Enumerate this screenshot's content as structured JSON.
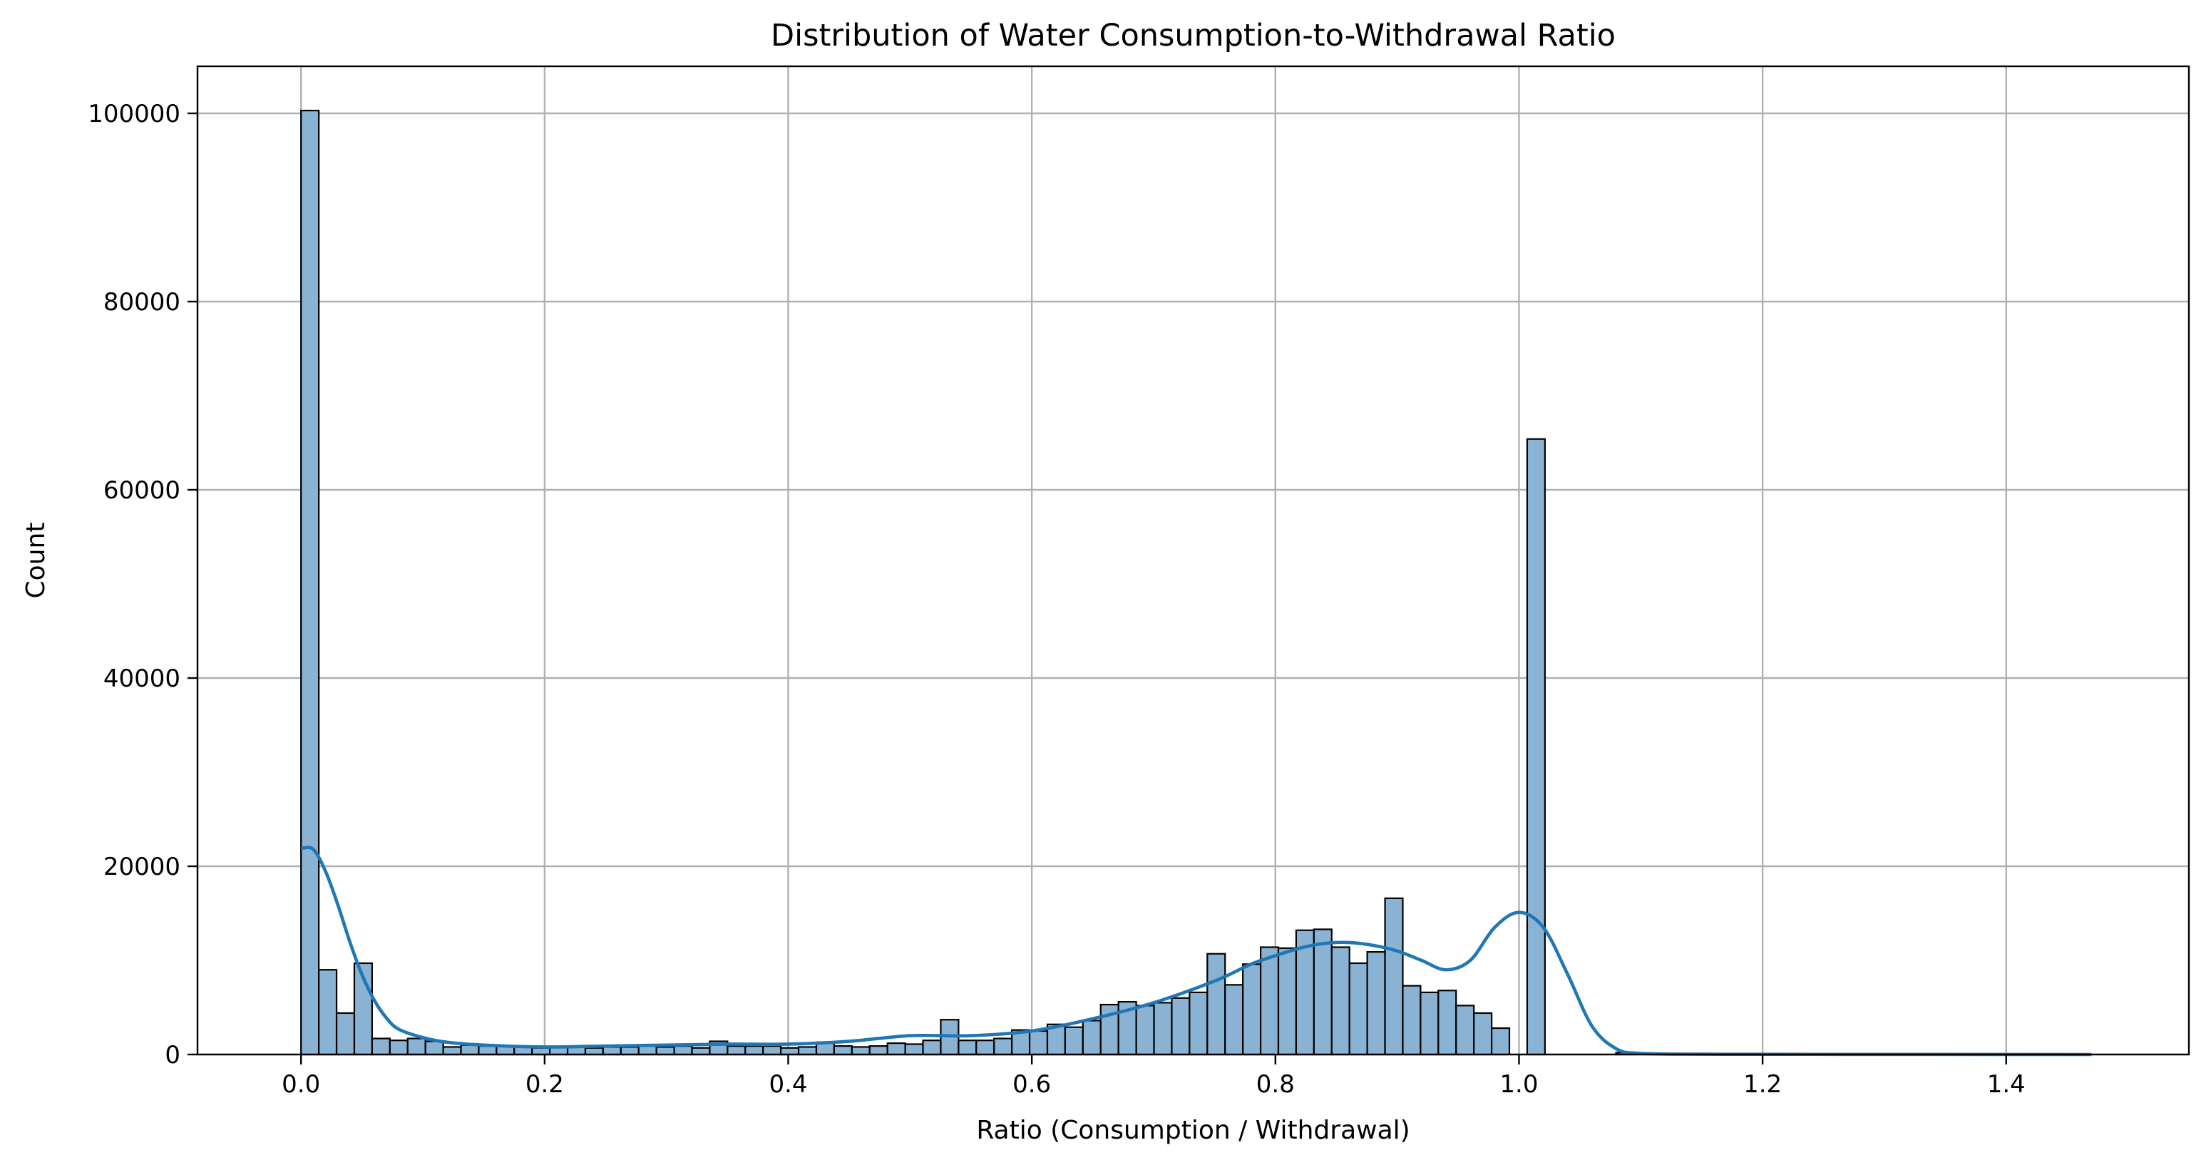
{
  "chart_data": {
    "type": "bar",
    "subtype": "histogram",
    "title": "Distribution of Water Consumption-to-Withdrawal Ratio",
    "xlabel": "Ratio (Consumption / Withdrawal)",
    "ylabel": "Count",
    "xlim": [
      -0.085,
      1.55
    ],
    "ylim": [
      0,
      105000
    ],
    "grid": true,
    "x_ticks": [
      0.0,
      0.2,
      0.4,
      0.6,
      0.8,
      1.0,
      1.2,
      1.4
    ],
    "x_tick_labels": [
      "0.0",
      "0.2",
      "0.4",
      "0.6",
      "0.8",
      "1.0",
      "1.2",
      "1.4"
    ],
    "y_ticks": [
      0,
      20000,
      40000,
      60000,
      80000,
      100000
    ],
    "y_tick_labels": [
      "0",
      "20000",
      "40000",
      "60000",
      "80000",
      "100000"
    ],
    "bin_start": 0.0,
    "bin_width": 0.01459,
    "counts": [
      100300,
      9000,
      4400,
      9700,
      1700,
      1500,
      1700,
      1400,
      800,
      1000,
      900,
      900,
      800,
      700,
      800,
      800,
      700,
      800,
      800,
      900,
      800,
      900,
      700,
      1400,
      900,
      900,
      900,
      700,
      800,
      1300,
      900,
      800,
      900,
      1200,
      1100,
      1500,
      3700,
      1500,
      1500,
      1700,
      2600,
      2500,
      3200,
      2900,
      3600,
      5300,
      5600,
      5200,
      5500,
      6000,
      6600,
      10700,
      7400,
      9600,
      11400,
      11300,
      13200,
      13300,
      11400,
      9700,
      10900,
      16600,
      7300,
      6600,
      6800,
      5200,
      4400,
      2800,
      0,
      65400,
      0,
      0,
      0,
      0,
      200,
      0,
      0,
      0,
      0,
      0,
      0,
      0,
      0,
      0,
      0,
      0,
      0,
      0,
      0,
      0,
      0,
      0,
      0,
      0,
      0,
      0,
      0,
      0,
      0,
      0,
      0,
      0,
      0,
      0,
      0,
      0,
      0,
      0,
      0,
      0,
      0,
      0,
      0,
      0,
      0,
      0,
      0,
      0,
      0,
      0,
      0,
      0,
      0,
      0,
      0,
      0,
      0,
      0
    ],
    "kde": {
      "name": "KDE",
      "x": [
        0.0,
        0.01,
        0.02,
        0.03,
        0.04,
        0.05,
        0.06,
        0.07,
        0.08,
        0.1,
        0.12,
        0.15,
        0.2,
        0.25,
        0.3,
        0.35,
        0.4,
        0.45,
        0.5,
        0.55,
        0.6,
        0.65,
        0.7,
        0.75,
        0.78,
        0.8,
        0.82,
        0.84,
        0.86,
        0.88,
        0.9,
        0.92,
        0.94,
        0.96,
        0.98,
        1.0,
        1.02,
        1.04,
        1.06,
        1.08,
        1.1,
        1.15,
        1.2,
        1.3,
        1.4,
        1.47
      ],
      "y": [
        21900,
        21800,
        19500,
        16000,
        12000,
        8500,
        5800,
        3900,
        2700,
        1800,
        1300,
        1000,
        800,
        900,
        1000,
        1100,
        1100,
        1400,
        2000,
        2000,
        2500,
        3800,
        5500,
        7800,
        9600,
        10500,
        11300,
        11800,
        11900,
        11600,
        11000,
        10000,
        9000,
        10000,
        13500,
        15100,
        13500,
        8500,
        3000,
        600,
        120,
        30,
        20,
        15,
        5,
        0
      ],
      "color": "#1f77b4"
    },
    "bar_color": "#8ab2d2"
  }
}
